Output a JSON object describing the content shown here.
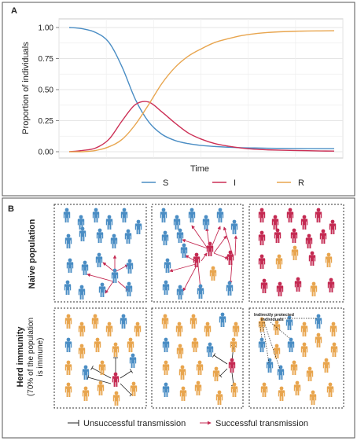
{
  "panel_a": {
    "label": "A",
    "chart_data": {
      "type": "line",
      "xlabel": "Time",
      "ylabel": "Proportion of individuals",
      "ylim": [
        0,
        1.05
      ],
      "y_ticks": [
        "0.00",
        "0.25",
        "0.50",
        "0.75",
        "1.00"
      ],
      "x_tick_labels_shown": false,
      "grid": true,
      "legend_position": "bottom",
      "x": [
        0,
        0.05,
        0.1,
        0.15,
        0.2,
        0.25,
        0.3,
        0.35,
        0.4,
        0.45,
        0.5,
        0.55,
        0.6,
        0.65,
        0.7,
        0.75,
        0.8,
        0.85,
        0.9,
        0.95,
        1.0
      ],
      "series": [
        {
          "name": "S",
          "color": "#4a8dc4",
          "values": [
            1.0,
            0.99,
            0.96,
            0.88,
            0.68,
            0.42,
            0.24,
            0.14,
            0.09,
            0.065,
            0.05,
            0.042,
            0.036,
            0.032,
            0.03,
            0.028,
            0.027,
            0.026,
            0.025,
            0.025,
            0.025
          ]
        },
        {
          "name": "I",
          "color": "#cc2f55",
          "values": [
            0.0,
            0.01,
            0.03,
            0.1,
            0.25,
            0.38,
            0.4,
            0.32,
            0.23,
            0.15,
            0.1,
            0.065,
            0.045,
            0.03,
            0.02,
            0.015,
            0.012,
            0.01,
            0.008,
            0.006,
            0.005
          ]
        },
        {
          "name": "R",
          "color": "#e8a54e",
          "values": [
            0.0,
            0.0,
            0.01,
            0.04,
            0.1,
            0.22,
            0.38,
            0.55,
            0.68,
            0.77,
            0.83,
            0.88,
            0.91,
            0.935,
            0.95,
            0.96,
            0.966,
            0.97,
            0.972,
            0.973,
            0.974
          ]
        }
      ]
    }
  },
  "panel_b": {
    "label": "B",
    "row_naive_label": "Naive population",
    "row_herd_label": "Herd immunity",
    "row_herd_sublabel_1": "(70% of the population",
    "row_herd_sublabel_2": "is immune)",
    "protected_annotation_1": "Indirectly protected",
    "protected_annotation_2": "individuals",
    "legend_unsuccessful": "Unsuccessful transmission",
    "legend_successful": "Successful transmission"
  },
  "colors": {
    "susceptible": "#4a8dc4",
    "infected": "#c42a52",
    "immune": "#e8a54e",
    "frame": "#555555"
  }
}
